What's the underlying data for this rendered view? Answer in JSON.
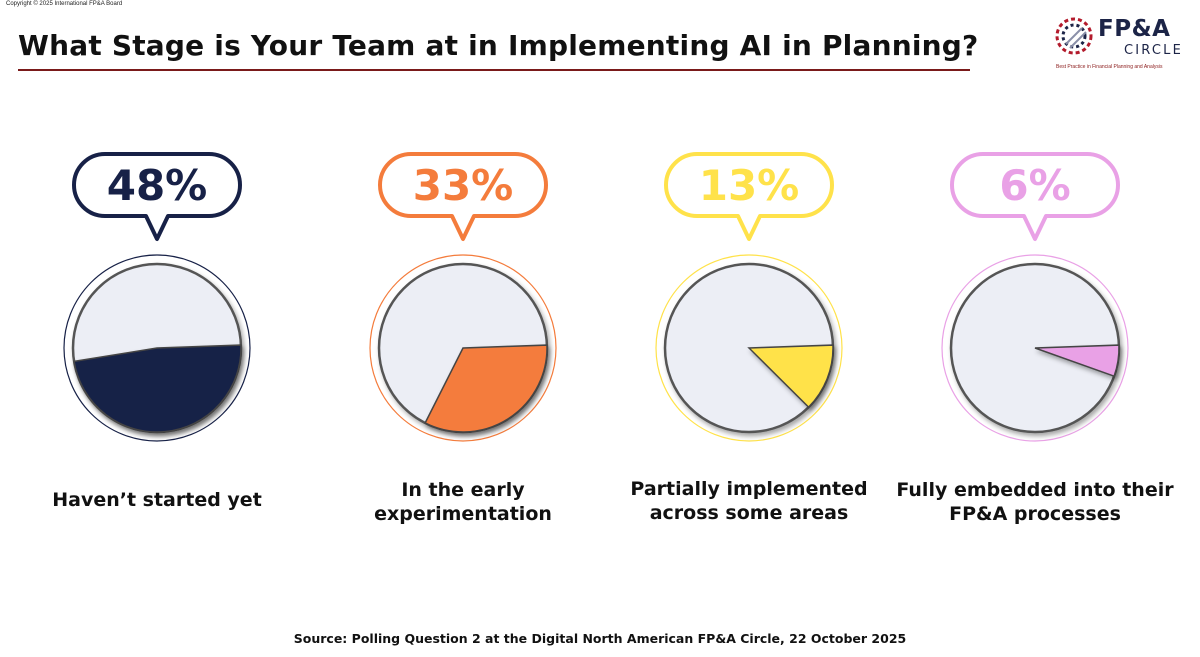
{
  "copyright": "Copyright © 2025 International FP&A Board",
  "title": "What Stage is Your Team at in Implementing AI in Planning?",
  "logo": {
    "name_top": "FP&A",
    "name_bottom": "CIRCLE",
    "tagline": "Best Practice in Financial Planning and Analysis"
  },
  "source": "Source: Polling Question 2 at the Digital North American FP&A Circle, 22 October 2025",
  "colors": {
    "haven_t_started": "#172147",
    "early_experimentation": "#f47c3c",
    "partially_implemented": "#ffe24a",
    "fully_embedded": "#e9a1e6",
    "pie_background": "#eceef5"
  },
  "chart_data": {
    "type": "pie",
    "categories": [
      "Haven’t started yet",
      "In the early experimentation",
      "Partially implemented across some areas",
      "Fully embedded into their FP&A processes"
    ],
    "values": [
      48,
      33,
      13,
      6
    ],
    "value_labels": [
      "48%",
      "33%",
      "13%",
      "6%"
    ],
    "unit": "%"
  }
}
